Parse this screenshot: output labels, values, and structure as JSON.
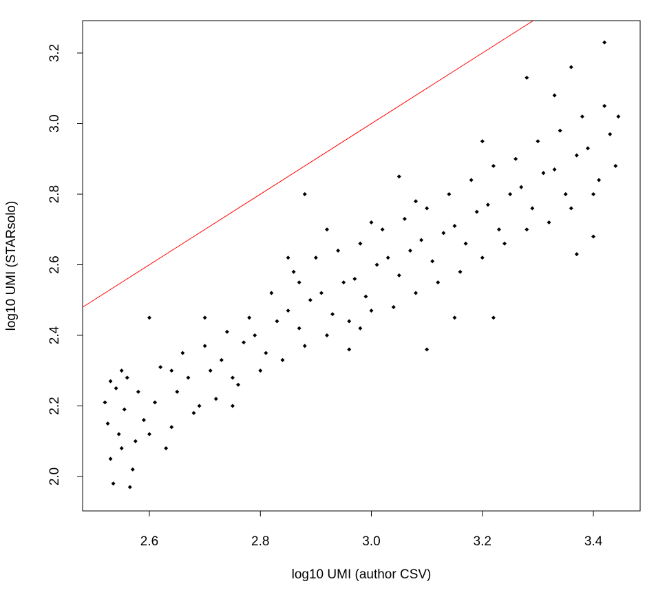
{
  "chart_data": {
    "type": "scatter",
    "x_label": "log10 UMI (author CSV)",
    "y_label": "log10 UMI (STARsolo)",
    "color": "#000000",
    "reference_line": {
      "slope": 1,
      "intercept": 0,
      "color": "#ff0000"
    },
    "xlim": [
      2.4797,
      3.4843
    ],
    "ylim": [
      1.9024,
      3.2917
    ],
    "xticks": [
      2.6,
      2.8,
      {
        "value": 3,
        "label": "3.0"
      },
      3.2,
      3.4
    ],
    "yticks": [
      {
        "value": 2,
        "label": "2.0"
      },
      2.2,
      2.4,
      2.6,
      2.8,
      {
        "value": 3,
        "label": "3.0"
      },
      3.2
    ],
    "x": [
      2.52,
      2.53,
      2.54,
      2.55,
      2.56,
      2.57,
      2.58,
      2.6,
      2.62,
      2.64,
      2.66,
      2.68,
      2.7,
      2.72,
      2.74,
      2.76,
      2.78,
      2.8,
      2.82,
      2.84,
      2.86,
      2.88,
      2.9,
      2.92,
      2.94,
      2.96,
      2.98,
      3.0,
      3.02,
      3.04,
      3.06,
      3.08,
      3.1,
      3.12,
      3.14,
      3.16,
      3.18,
      3.2,
      3.22,
      3.24,
      3.26,
      3.28,
      3.3,
      3.32,
      3.34,
      3.36,
      3.38,
      3.4,
      3.42,
      3.44,
      2.525,
      2.535,
      2.545,
      2.555,
      2.565,
      2.575,
      2.59,
      2.61,
      2.63,
      2.65,
      2.67,
      2.69,
      2.71,
      2.73,
      2.75,
      2.77,
      2.79,
      2.81,
      2.83,
      2.85,
      2.87,
      2.89,
      2.91,
      2.93,
      2.95,
      2.97,
      2.99,
      3.01,
      3.03,
      3.05,
      3.07,
      3.09,
      3.11,
      3.13,
      3.15,
      3.17,
      3.19,
      3.21,
      3.23,
      3.25,
      3.27,
      3.29,
      3.31,
      3.33,
      3.35,
      3.37,
      3.39,
      3.41,
      3.43,
      3.445,
      2.88,
      3.42,
      3.28,
      3.36,
      3.1,
      3.37,
      3.4,
      2.96,
      2.85,
      2.92,
      3.05,
      3.15,
      3.22,
      2.7,
      2.6,
      3.0,
      2.98,
      3.08,
      3.2,
      3.33,
      2.55,
      2.53,
      2.64,
      2.75,
      2.87
    ],
    "values": [
      2.21,
      2.05,
      2.25,
      2.08,
      2.28,
      2.02,
      2.24,
      2.12,
      2.31,
      2.14,
      2.35,
      2.18,
      2.37,
      2.22,
      2.41,
      2.26,
      2.45,
      2.3,
      2.52,
      2.33,
      2.58,
      2.37,
      2.62,
      2.4,
      2.64,
      2.44,
      2.66,
      2.47,
      2.7,
      2.48,
      2.73,
      2.52,
      2.76,
      2.55,
      2.8,
      2.58,
      2.84,
      2.62,
      2.88,
      2.66,
      2.9,
      2.7,
      2.95,
      2.72,
      2.98,
      2.76,
      3.02,
      2.8,
      3.05,
      2.88,
      2.15,
      1.98,
      2.12,
      2.19,
      1.97,
      2.1,
      2.16,
      2.21,
      2.08,
      2.24,
      2.28,
      2.2,
      2.3,
      2.33,
      2.28,
      2.38,
      2.4,
      2.35,
      2.44,
      2.47,
      2.42,
      2.5,
      2.52,
      2.46,
      2.55,
      2.56,
      2.51,
      2.6,
      2.62,
      2.57,
      2.64,
      2.67,
      2.61,
      2.69,
      2.71,
      2.66,
      2.75,
      2.77,
      2.7,
      2.8,
      2.82,
      2.76,
      2.86,
      2.87,
      2.8,
      2.91,
      2.93,
      2.84,
      2.97,
      3.02,
      2.8,
      3.23,
      3.13,
      3.16,
      2.36,
      2.63,
      2.68,
      2.36,
      2.62,
      2.7,
      2.85,
      2.45,
      2.45,
      2.45,
      2.45,
      2.72,
      2.42,
      2.78,
      2.95,
      3.08,
      2.3,
      2.27,
      2.3,
      2.2,
      2.55
    ]
  }
}
